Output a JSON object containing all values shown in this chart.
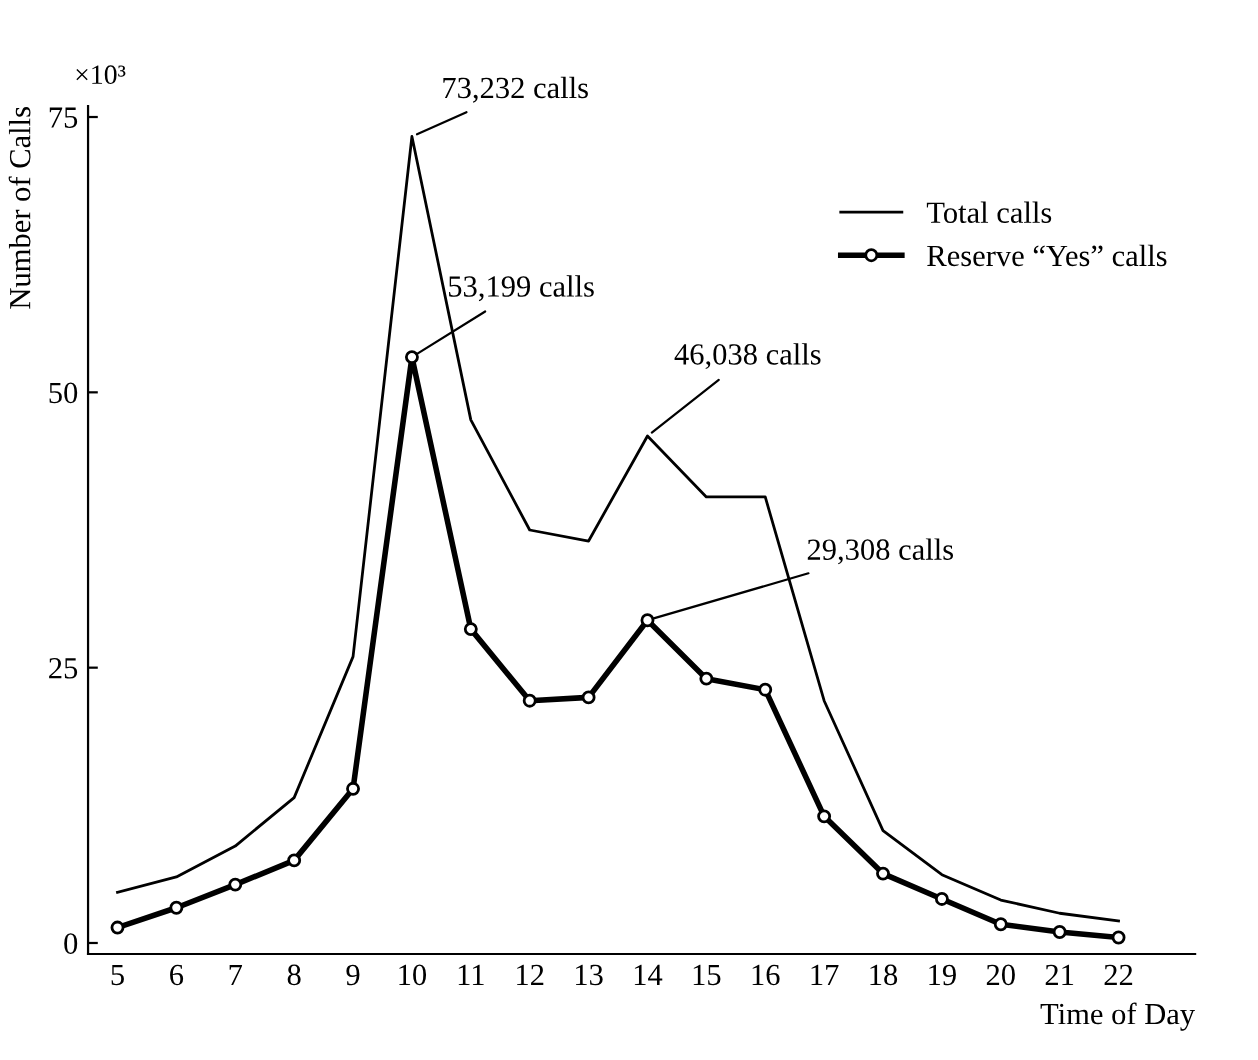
{
  "chart_data": {
    "type": "line",
    "xlabel": "Time of Day",
    "ylabel": "Number of Calls",
    "categories": [
      "5",
      "6",
      "7",
      "8",
      "9",
      "10",
      "11",
      "12",
      "13",
      "14",
      "15",
      "16",
      "17",
      "18",
      "19",
      "20",
      "21",
      "22"
    ],
    "series": [
      {
        "name": "Total calls",
        "color": "#000000",
        "marker": "none",
        "values": [
          4.6,
          6,
          8.8,
          13.2,
          26,
          73.232,
          47.5,
          37.5,
          36.5,
          46.038,
          40.5,
          40.5,
          22,
          10.2,
          6.2,
          3.9,
          2.7,
          2.0
        ]
      },
      {
        "name": "Reserve “Yes” calls",
        "color": "#000000",
        "marker": "circle",
        "values": [
          1.4,
          3.2,
          5.3,
          7.5,
          14,
          53.199,
          28.5,
          22,
          22.3,
          29.308,
          24,
          23,
          11.5,
          6.3,
          4,
          1.7,
          1,
          0.5
        ]
      }
    ],
    "ylim": [
      -1,
      76
    ],
    "yticks": [
      0,
      25,
      50,
      75
    ],
    "grid": false,
    "legend": "top right",
    "annotations": [
      "×10³",
      {
        "text": "73,232 calls",
        "x": "10",
        "y": 73.232
      },
      {
        "text": "53,199 calls",
        "x": "10",
        "y": 53.199
      },
      {
        "text": "46,038 calls",
        "x": "14",
        "y": 46.038
      },
      {
        "text": "29,308 calls",
        "x": "14",
        "y": 29.308
      }
    ]
  }
}
